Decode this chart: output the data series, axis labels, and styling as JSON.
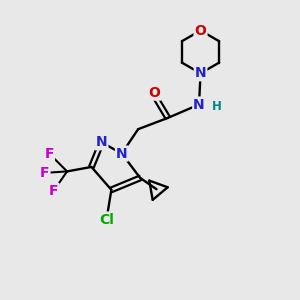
{
  "bg_color": "#e8e8e8",
  "atom_colors": {
    "C": "#000000",
    "N": "#2222cc",
    "O": "#cc0000",
    "F": "#cc00cc",
    "Cl": "#00aa00",
    "H": "#008888"
  },
  "figsize": [
    3.0,
    3.0
  ],
  "dpi": 100
}
